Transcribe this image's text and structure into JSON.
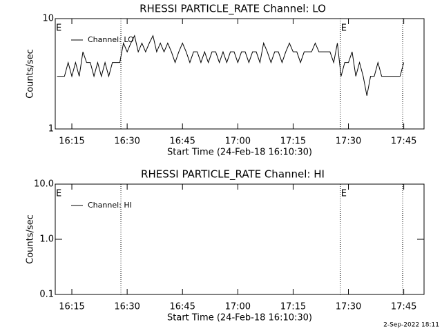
{
  "chart_data": [
    {
      "type": "line",
      "title": "RHESSI PARTICLE_RATE Channel: LO",
      "xlabel": "Start Time (24-Feb-18 16:10:30)",
      "ylabel": "Counts/sec",
      "log_y": true,
      "ylim": [
        1,
        10
      ],
      "yticks": [
        1,
        10
      ],
      "xlim": [
        970.5,
        1070.5
      ],
      "xticks": [
        {
          "value": 975,
          "label": "16:15"
        },
        {
          "value": 990,
          "label": "16:30"
        },
        {
          "value": 1005,
          "label": "16:45"
        },
        {
          "value": 1020,
          "label": "17:00"
        },
        {
          "value": 1035,
          "label": "17:15"
        },
        {
          "value": 1050,
          "label": "17:30"
        },
        {
          "value": 1065,
          "label": "17:45"
        }
      ],
      "vlines": [
        988.3,
        1047.8,
        1064.7
      ],
      "annotations": [
        {
          "text": "E",
          "x": 970.5
        },
        {
          "text": "E",
          "x": 1047.8
        }
      ],
      "legend": "upper left",
      "series": [
        {
          "name": "Channel: LO",
          "color": "#000000",
          "x": [
            971,
            972,
            973,
            974,
            975,
            976,
            977,
            978,
            979,
            980,
            981,
            982,
            983,
            984,
            985,
            986,
            987,
            988,
            989,
            990,
            991,
            992,
            993,
            994,
            995,
            996,
            997,
            998,
            999,
            1000,
            1001,
            1002,
            1003,
            1004,
            1005,
            1006,
            1007,
            1008,
            1009,
            1010,
            1011,
            1012,
            1013,
            1014,
            1015,
            1016,
            1017,
            1018,
            1019,
            1020,
            1021,
            1022,
            1023,
            1024,
            1025,
            1026,
            1027,
            1028,
            1029,
            1030,
            1031,
            1032,
            1033,
            1034,
            1035,
            1036,
            1037,
            1038,
            1039,
            1040,
            1041,
            1042,
            1043,
            1044,
            1045,
            1046,
            1047,
            1048,
            1049,
            1050,
            1051,
            1052,
            1053,
            1054,
            1055,
            1056,
            1057,
            1058,
            1059,
            1060,
            1061,
            1062,
            1063,
            1064,
            1065
          ],
          "values": [
            3,
            3,
            3,
            4,
            3,
            4,
            3,
            5,
            4,
            4,
            3,
            4,
            3,
            4,
            3,
            4,
            4,
            4,
            6,
            5,
            6,
            7,
            5,
            6,
            5,
            6,
            7,
            5,
            6,
            5,
            6,
            5,
            4,
            5,
            6,
            5,
            4,
            5,
            5,
            4,
            5,
            4,
            5,
            5,
            4,
            5,
            4,
            5,
            5,
            4,
            5,
            5,
            4,
            5,
            5,
            4,
            6,
            5,
            4,
            5,
            5,
            4,
            5,
            6,
            5,
            5,
            4,
            5,
            5,
            5,
            6,
            5,
            5,
            5,
            5,
            4,
            6,
            3,
            4,
            4,
            5,
            3,
            4,
            3,
            2,
            3,
            3,
            4,
            3,
            3,
            3,
            3,
            3,
            3,
            4
          ]
        }
      ]
    },
    {
      "type": "line",
      "title": "RHESSI PARTICLE_RATE Channel: HI",
      "xlabel": "Start Time (24-Feb-18 16:10:30)",
      "ylabel": "Counts/sec",
      "log_y": true,
      "ylim": [
        0.1,
        10
      ],
      "yticks": [
        0.1,
        {
          "value": 1,
          "label": "1.0"
        },
        {
          "value": 10,
          "label": "10.0"
        }
      ],
      "xlim": [
        970.5,
        1070.5
      ],
      "xticks": [
        {
          "value": 975,
          "label": "16:15"
        },
        {
          "value": 990,
          "label": "16:30"
        },
        {
          "value": 1005,
          "label": "16:45"
        },
        {
          "value": 1020,
          "label": "17:00"
        },
        {
          "value": 1035,
          "label": "17:15"
        },
        {
          "value": 1050,
          "label": "17:30"
        },
        {
          "value": 1065,
          "label": "17:45"
        }
      ],
      "vlines": [
        988.3,
        1047.8,
        1064.7
      ],
      "annotations": [
        {
          "text": "E",
          "x": 970.5
        },
        {
          "text": "E",
          "x": 1047.8
        }
      ],
      "legend": "upper left",
      "series": [
        {
          "name": "Channel: HI",
          "color": "#000000",
          "x": [],
          "values": []
        }
      ]
    }
  ],
  "footer": "2-Sep-2022 18:11"
}
